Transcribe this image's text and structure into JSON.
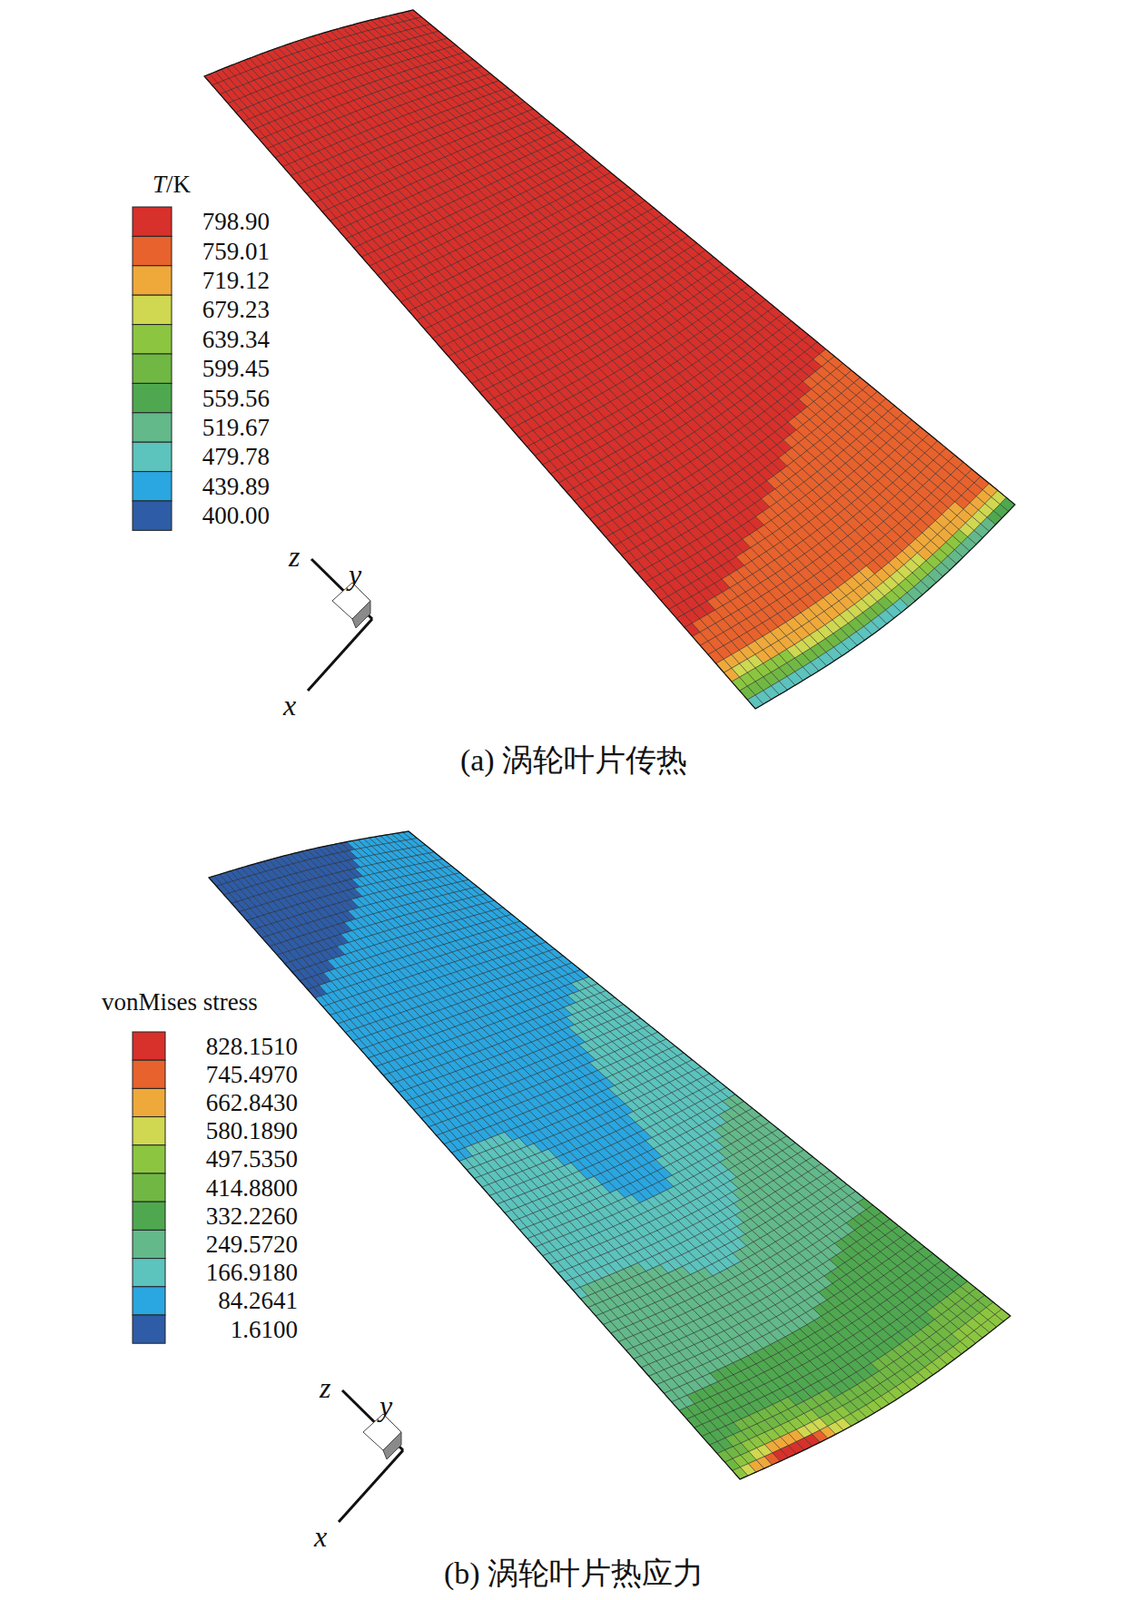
{
  "chart_data": [
    {
      "type": "contour",
      "title": "(a) 涡轮叶片传热",
      "colorbar": {
        "title": "T/K",
        "ticks": [
          {
            "value": 798.9,
            "label": "798.90"
          },
          759.01,
          719.12,
          679.23,
          639.34,
          599.45,
          559.56,
          519.67,
          479.78,
          439.89,
          {
            "value": 400,
            "label": "400.00"
          }
        ],
        "colors": [
          "#d8302b",
          "#e8622d",
          "#efa93a",
          "#cfd850",
          "#8cc640",
          "#70b843",
          "#4fa84f",
          "#63b98a",
          "#5cc3bd",
          "#2aa6e0",
          "#2e5ca6"
        ],
        "range": [
          400,
          798.9
        ]
      },
      "axis_labels": [
        "z",
        "y",
        "x"
      ]
    },
    {
      "type": "contour",
      "title": "(b) 涡轮叶片热应力",
      "colorbar": {
        "title": "vonMises stress",
        "ticks": [
          {
            "value": 828.151,
            "label": "828.1510"
          },
          {
            "value": 745.497,
            "label": "745.4970"
          },
          {
            "value": 662.843,
            "label": "662.8430"
          },
          {
            "value": 580.189,
            "label": "580.1890"
          },
          {
            "value": 497.535,
            "label": "497.5350"
          },
          {
            "value": 414.88,
            "label": "414.8800"
          },
          {
            "value": 332.226,
            "label": "332.2260"
          },
          {
            "value": 249.572,
            "label": "249.5720"
          },
          {
            "value": 166.918,
            "label": "166.9180"
          },
          84.2641,
          {
            "value": 1.61,
            "label": "1.6100"
          }
        ],
        "colors": [
          "#d8302b",
          "#e8622d",
          "#efa93a",
          "#cfd850",
          "#8cc640",
          "#70b843",
          "#4fa84f",
          "#63b98a",
          "#5cc3bd",
          "#2aa6e0",
          "#2e5ca6"
        ],
        "range": [
          1.61,
          828.151
        ]
      },
      "axis_labels": [
        "z",
        "y",
        "x"
      ]
    }
  ]
}
